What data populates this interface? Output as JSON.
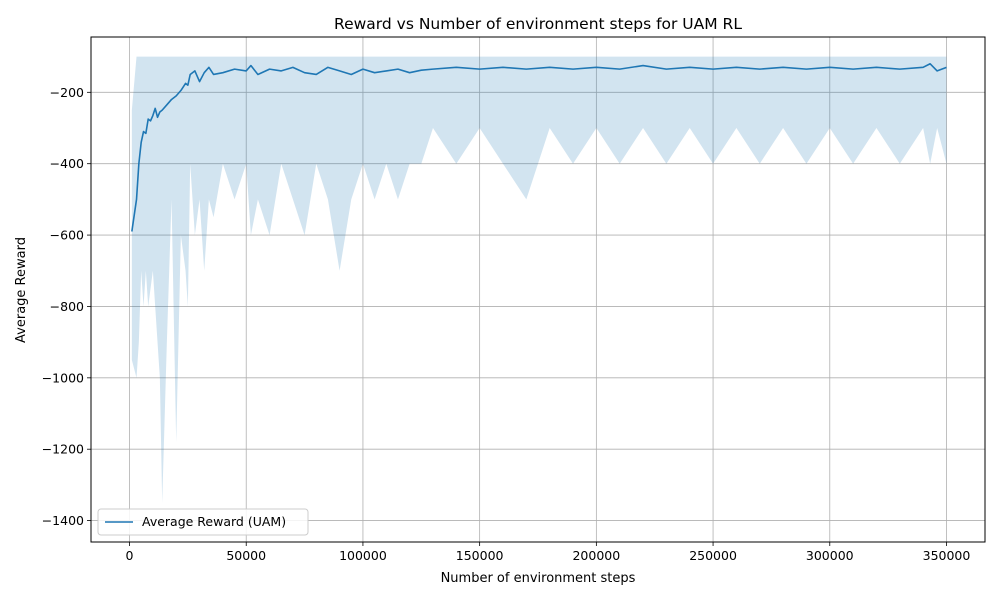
{
  "chart_data": {
    "type": "line",
    "title": "Reward vs Number of environment steps for UAM RL",
    "xlabel": "Number of environment steps",
    "ylabel": "Average Reward",
    "xlim": [
      -16500,
      366500
    ],
    "ylim": [
      -1460,
      -45
    ],
    "xticks": [
      0,
      50000,
      100000,
      150000,
      200000,
      250000,
      300000,
      350000
    ],
    "xtick_labels": [
      "0",
      "50000",
      "100000",
      "150000",
      "200000",
      "250000",
      "300000",
      "350000"
    ],
    "yticks": [
      -200,
      -400,
      -600,
      -800,
      -1000,
      -1200,
      -1400
    ],
    "ytick_labels": [
      "−200",
      "−400",
      "−600",
      "−800",
      "−1000",
      "−1200",
      "−1400"
    ],
    "grid": true,
    "legend_position": "lower-left",
    "colors": {
      "line": "#1f77b4",
      "band": "#1f77b4",
      "grid": "#b0b0b0"
    },
    "series": [
      {
        "name": "Average Reward (UAM)",
        "x": [
          1000,
          3000,
          4000,
          5000,
          6000,
          7000,
          8000,
          9000,
          10000,
          11000,
          12000,
          13000,
          14000,
          16000,
          18000,
          20000,
          22000,
          24000,
          25000,
          26000,
          28000,
          30000,
          32000,
          34000,
          36000,
          40000,
          45000,
          50000,
          52000,
          55000,
          60000,
          65000,
          70000,
          75000,
          80000,
          85000,
          90000,
          95000,
          100000,
          105000,
          110000,
          115000,
          120000,
          125000,
          130000,
          140000,
          150000,
          160000,
          170000,
          180000,
          190000,
          200000,
          210000,
          220000,
          230000,
          240000,
          250000,
          260000,
          270000,
          280000,
          290000,
          300000,
          310000,
          320000,
          330000,
          340000,
          343000,
          346000,
          350000
        ],
        "y": [
          -590,
          -500,
          -400,
          -340,
          -310,
          -315,
          -275,
          -280,
          -265,
          -245,
          -270,
          -255,
          -250,
          -235,
          -220,
          -210,
          -195,
          -175,
          -180,
          -150,
          -140,
          -170,
          -145,
          -130,
          -150,
          -145,
          -135,
          -140,
          -125,
          -150,
          -135,
          -140,
          -130,
          -145,
          -150,
          -130,
          -140,
          -150,
          -135,
          -145,
          -140,
          -135,
          -145,
          -138,
          -135,
          -130,
          -135,
          -130,
          -135,
          -130,
          -135,
          -130,
          -135,
          -125,
          -135,
          -130,
          -135,
          -130,
          -135,
          -130,
          -135,
          -130,
          -135,
          -130,
          -135,
          -130,
          -120,
          -140,
          -130
        ],
        "band_upper": [
          -250,
          -100,
          -100,
          -100,
          -100,
          -100,
          -100,
          -100,
          -100,
          -100,
          -100,
          -100,
          -100,
          -100,
          -100,
          -100,
          -100,
          -100,
          -100,
          -100,
          -100,
          -100,
          -100,
          -100,
          -100,
          -100,
          -100,
          -100,
          -100,
          -100,
          -100,
          -100,
          -100,
          -100,
          -100,
          -100,
          -100,
          -100,
          -100,
          -100,
          -100,
          -100,
          -100,
          -100,
          -100,
          -100,
          -100,
          -100,
          -100,
          -100,
          -100,
          -100,
          -100,
          -100,
          -100,
          -100,
          -100,
          -100,
          -100,
          -100,
          -100,
          -100,
          -100,
          -100,
          -100,
          -100,
          -100,
          -100,
          -100
        ],
        "band_lower": [
          -950,
          -1000,
          -900,
          -700,
          -800,
          -700,
          -800,
          -750,
          -700,
          -800,
          -900,
          -1000,
          -1350,
          -900,
          -500,
          -1180,
          -600,
          -700,
          -800,
          -400,
          -600,
          -500,
          -700,
          -500,
          -550,
          -400,
          -500,
          -400,
          -600,
          -500,
          -600,
          -400,
          -500,
          -600,
          -400,
          -500,
          -700,
          -500,
          -400,
          -500,
          -400,
          -500,
          -400,
          -400,
          -300,
          -400,
          -300,
          -400,
          -500,
          -300,
          -400,
          -300,
          -400,
          -300,
          -400,
          -300,
          -400,
          -300,
          -400,
          -300,
          -400,
          -300,
          -400,
          -300,
          -400,
          -300,
          -400,
          -300,
          -400
        ]
      }
    ]
  }
}
